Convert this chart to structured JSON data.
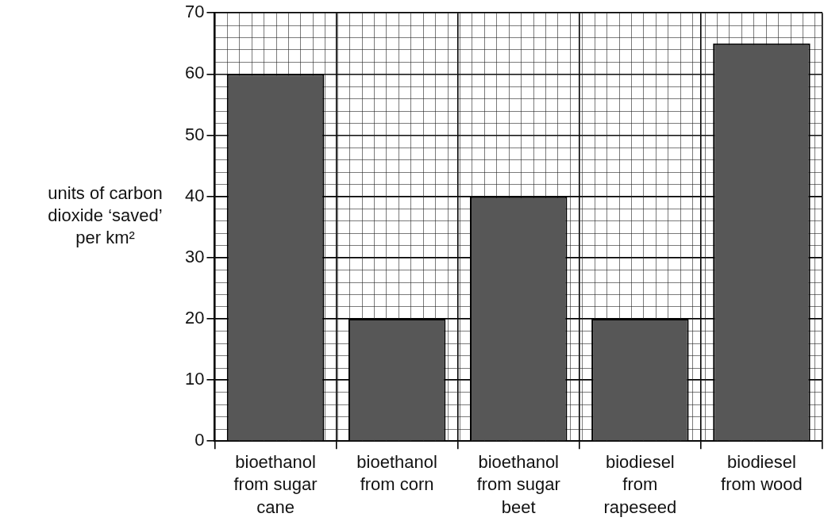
{
  "chart_data": {
    "type": "bar",
    "ylabel": "units of carbon dioxide ‘saved’ per km²",
    "categories": [
      "bioethanol from sugar cane",
      "bioethanol from corn",
      "bioethanol from sugar beet",
      "biodiesel from rapeseed",
      "biodiesel from wood"
    ],
    "values": [
      60,
      20,
      40,
      20,
      65
    ],
    "color": "#575757",
    "ylim": [
      0,
      70
    ],
    "yticks": [
      0,
      10,
      20,
      30,
      40,
      50,
      60,
      70
    ],
    "grid": true
  }
}
